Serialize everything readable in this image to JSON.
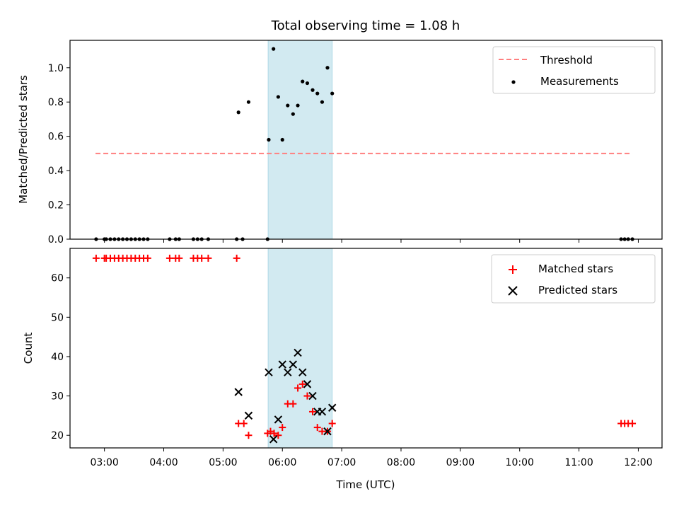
{
  "chart_data": {
    "title": "Total observing time = 1.08 h",
    "xlabel": "Time (UTC)",
    "x_ticks": [
      {
        "value": 3,
        "label": "03:00"
      },
      {
        "value": 4,
        "label": "04:00"
      },
      {
        "value": 5,
        "label": "05:00"
      },
      {
        "value": 6,
        "label": "06:00"
      },
      {
        "value": 7,
        "label": "07:00"
      },
      {
        "value": 8,
        "label": "08:00"
      },
      {
        "value": 9,
        "label": "09:00"
      },
      {
        "value": 10,
        "label": "10:00"
      },
      {
        "value": 11,
        "label": "11:00"
      },
      {
        "value": 12,
        "label": "12:00"
      }
    ],
    "xlim": [
      2.42,
      12.4
    ],
    "highlight_span": {
      "start": 5.76,
      "end": 6.84,
      "color": "#add8e6"
    },
    "panels": [
      {
        "type": "scatter",
        "ylabel": "Matched/Predicted stars",
        "ylim": [
          0,
          1.16
        ],
        "y_ticks": [
          "0.0",
          "0.2",
          "0.4",
          "0.6",
          "0.8",
          "1.0"
        ],
        "legend": {
          "position": "top-right"
        },
        "threshold": {
          "name": "Threshold",
          "value": 0.5,
          "x_start": 2.85,
          "x_end": 11.9,
          "color": "#ff7f7f"
        },
        "series": [
          {
            "name": "Measurements",
            "color": "#000000",
            "marker": "dot",
            "points": [
              [
                2.86,
                0
              ],
              [
                3.0,
                0
              ],
              [
                3.03,
                0
              ],
              [
                3.1,
                0
              ],
              [
                3.17,
                0
              ],
              [
                3.24,
                0
              ],
              [
                3.31,
                0
              ],
              [
                3.38,
                0
              ],
              [
                3.45,
                0
              ],
              [
                3.52,
                0
              ],
              [
                3.59,
                0
              ],
              [
                3.66,
                0
              ],
              [
                3.73,
                0
              ],
              [
                4.1,
                0
              ],
              [
                4.2,
                0
              ],
              [
                4.26,
                0
              ],
              [
                4.5,
                0
              ],
              [
                4.57,
                0
              ],
              [
                4.64,
                0
              ],
              [
                4.75,
                0
              ],
              [
                5.23,
                0
              ],
              [
                5.33,
                0
              ],
              [
                5.75,
                0
              ],
              [
                5.26,
                0.74
              ],
              [
                5.43,
                0.8
              ],
              [
                5.77,
                0.58
              ],
              [
                5.85,
                1.11
              ],
              [
                5.93,
                0.83
              ],
              [
                6.0,
                0.58
              ],
              [
                6.09,
                0.78
              ],
              [
                6.18,
                0.73
              ],
              [
                6.26,
                0.78
              ],
              [
                6.34,
                0.92
              ],
              [
                6.42,
                0.91
              ],
              [
                6.51,
                0.87
              ],
              [
                6.59,
                0.85
              ],
              [
                6.67,
                0.8
              ],
              [
                6.76,
                1.0
              ],
              [
                6.84,
                0.85
              ],
              [
                11.71,
                0
              ],
              [
                11.77,
                0
              ],
              [
                11.83,
                0
              ],
              [
                11.9,
                0
              ]
            ]
          }
        ]
      },
      {
        "type": "scatter",
        "ylabel": "Count",
        "ylim": [
          16.8,
          67.5
        ],
        "y_ticks": [
          "20",
          "30",
          "40",
          "50",
          "60"
        ],
        "legend": {
          "position": "top-right"
        },
        "series": [
          {
            "name": "Matched stars",
            "color": "#ff0000",
            "marker": "plus",
            "points": [
              [
                2.86,
                65
              ],
              [
                3.0,
                65
              ],
              [
                3.03,
                65
              ],
              [
                3.1,
                65
              ],
              [
                3.17,
                65
              ],
              [
                3.24,
                65
              ],
              [
                3.31,
                65
              ],
              [
                3.38,
                65
              ],
              [
                3.45,
                65
              ],
              [
                3.52,
                65
              ],
              [
                3.59,
                65
              ],
              [
                3.66,
                65
              ],
              [
                3.73,
                65
              ],
              [
                4.1,
                65
              ],
              [
                4.2,
                65
              ],
              [
                4.26,
                65
              ],
              [
                4.5,
                65
              ],
              [
                4.57,
                65
              ],
              [
                4.64,
                65
              ],
              [
                4.75,
                65
              ],
              [
                5.23,
                65
              ],
              [
                5.26,
                23
              ],
              [
                5.35,
                23
              ],
              [
                5.43,
                20
              ],
              [
                5.75,
                20.5
              ],
              [
                5.8,
                21
              ],
              [
                5.86,
                20.5
              ],
              [
                5.93,
                20
              ],
              [
                6.0,
                22
              ],
              [
                6.09,
                28
              ],
              [
                6.18,
                28
              ],
              [
                6.26,
                32
              ],
              [
                6.34,
                33
              ],
              [
                6.42,
                30
              ],
              [
                6.51,
                26
              ],
              [
                6.59,
                22
              ],
              [
                6.67,
                21
              ],
              [
                6.76,
                21
              ],
              [
                6.84,
                23
              ],
              [
                11.71,
                23
              ],
              [
                11.77,
                23
              ],
              [
                11.83,
                23
              ],
              [
                11.9,
                23
              ]
            ]
          },
          {
            "name": "Predicted stars",
            "color": "#000000",
            "marker": "x",
            "points": [
              [
                5.26,
                31
              ],
              [
                5.43,
                25
              ],
              [
                5.77,
                36
              ],
              [
                5.85,
                19
              ],
              [
                5.93,
                24
              ],
              [
                6.0,
                38
              ],
              [
                6.09,
                36
              ],
              [
                6.18,
                38
              ],
              [
                6.26,
                41
              ],
              [
                6.34,
                36
              ],
              [
                6.42,
                33
              ],
              [
                6.51,
                30
              ],
              [
                6.59,
                26
              ],
              [
                6.67,
                26
              ],
              [
                6.76,
                21
              ],
              [
                6.84,
                27
              ]
            ]
          }
        ]
      }
    ]
  }
}
